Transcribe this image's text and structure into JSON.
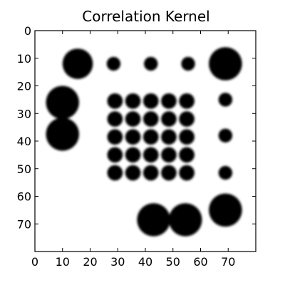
{
  "chart_data": {
    "type": "heatmap",
    "title": "Correlation Kernel",
    "xlabel": "",
    "ylabel": "",
    "xlim": [
      0,
      80
    ],
    "ylim": [
      80,
      0
    ],
    "x_ticks": [
      0,
      10,
      20,
      30,
      40,
      50,
      60,
      70
    ],
    "y_ticks": [
      0,
      10,
      20,
      30,
      40,
      50,
      60,
      70
    ],
    "grid": false,
    "colormap": "gray_r",
    "blobs": [
      {
        "x": 15.5,
        "y": 12,
        "r": 5.5
      },
      {
        "x": 28.5,
        "y": 12,
        "r": 2.5
      },
      {
        "x": 42,
        "y": 12,
        "r": 2.5
      },
      {
        "x": 55.5,
        "y": 12,
        "r": 2.5
      },
      {
        "x": 69,
        "y": 12,
        "r": 6
      },
      {
        "x": 10,
        "y": 26,
        "r": 6
      },
      {
        "x": 10,
        "y": 37.5,
        "r": 6
      },
      {
        "x": 69,
        "y": 25,
        "r": 2.5
      },
      {
        "x": 69,
        "y": 38,
        "r": 2.5
      },
      {
        "x": 69,
        "y": 51.5,
        "r": 2.5
      },
      {
        "x": 29,
        "y": 25.5,
        "r": 2.8
      },
      {
        "x": 35.5,
        "y": 25.5,
        "r": 2.8
      },
      {
        "x": 42,
        "y": 25.5,
        "r": 2.8
      },
      {
        "x": 48.5,
        "y": 25.5,
        "r": 2.8
      },
      {
        "x": 55,
        "y": 25.5,
        "r": 2.8
      },
      {
        "x": 29,
        "y": 32,
        "r": 2.8
      },
      {
        "x": 35.5,
        "y": 32,
        "r": 2.8
      },
      {
        "x": 42,
        "y": 32,
        "r": 2.8
      },
      {
        "x": 48.5,
        "y": 32,
        "r": 2.8
      },
      {
        "x": 55,
        "y": 32,
        "r": 2.8
      },
      {
        "x": 29,
        "y": 38.5,
        "r": 2.8
      },
      {
        "x": 35.5,
        "y": 38.5,
        "r": 2.8
      },
      {
        "x": 42,
        "y": 38.5,
        "r": 2.8
      },
      {
        "x": 48.5,
        "y": 38.5,
        "r": 2.8
      },
      {
        "x": 55,
        "y": 38.5,
        "r": 2.8
      },
      {
        "x": 29,
        "y": 45,
        "r": 2.8
      },
      {
        "x": 35.5,
        "y": 45,
        "r": 2.8
      },
      {
        "x": 42,
        "y": 45,
        "r": 2.8
      },
      {
        "x": 48.5,
        "y": 45,
        "r": 2.8
      },
      {
        "x": 55,
        "y": 45,
        "r": 2.8
      },
      {
        "x": 29,
        "y": 51.5,
        "r": 2.8
      },
      {
        "x": 35.5,
        "y": 51.5,
        "r": 2.8
      },
      {
        "x": 42,
        "y": 51.5,
        "r": 2.8
      },
      {
        "x": 48.5,
        "y": 51.5,
        "r": 2.8
      },
      {
        "x": 55,
        "y": 51.5,
        "r": 2.8
      },
      {
        "x": 69,
        "y": 65,
        "r": 6
      },
      {
        "x": 43,
        "y": 68.5,
        "r": 6
      },
      {
        "x": 54.5,
        "y": 68.5,
        "r": 6
      }
    ]
  }
}
